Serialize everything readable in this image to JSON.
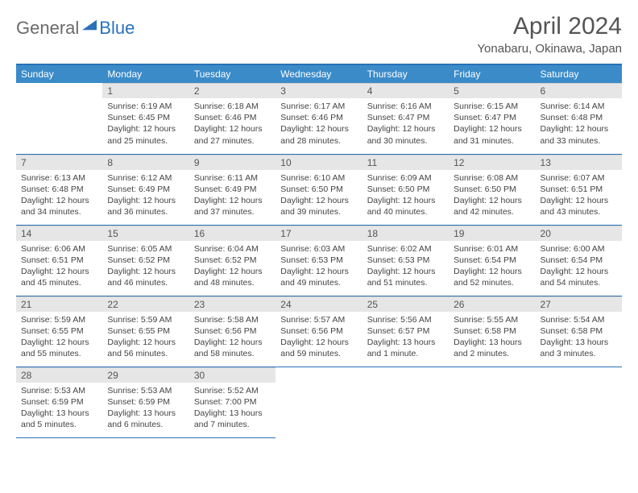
{
  "logo": {
    "general": "General",
    "blue": "Blue"
  },
  "title": "April 2024",
  "location": "Yonabaru, Okinawa, Japan",
  "colors": {
    "header_bg": "#3b8bc9",
    "border": "#2a71b8",
    "daynum_bg": "#e6e6e6",
    "text": "#444444",
    "title_text": "#555555",
    "logo_gray": "#6b6b6b",
    "logo_blue": "#2a71b8"
  },
  "fonts": {
    "title_size": 30,
    "location_size": 15,
    "header_size": 12,
    "cell_size": 10.5
  },
  "weekdays": [
    "Sunday",
    "Monday",
    "Tuesday",
    "Wednesday",
    "Thursday",
    "Friday",
    "Saturday"
  ],
  "weeks": [
    [
      null,
      {
        "n": "1",
        "sr": "6:19 AM",
        "ss": "6:45 PM",
        "dl": "12 hours and 25 minutes."
      },
      {
        "n": "2",
        "sr": "6:18 AM",
        "ss": "6:46 PM",
        "dl": "12 hours and 27 minutes."
      },
      {
        "n": "3",
        "sr": "6:17 AM",
        "ss": "6:46 PM",
        "dl": "12 hours and 28 minutes."
      },
      {
        "n": "4",
        "sr": "6:16 AM",
        "ss": "6:47 PM",
        "dl": "12 hours and 30 minutes."
      },
      {
        "n": "5",
        "sr": "6:15 AM",
        "ss": "6:47 PM",
        "dl": "12 hours and 31 minutes."
      },
      {
        "n": "6",
        "sr": "6:14 AM",
        "ss": "6:48 PM",
        "dl": "12 hours and 33 minutes."
      }
    ],
    [
      {
        "n": "7",
        "sr": "6:13 AM",
        "ss": "6:48 PM",
        "dl": "12 hours and 34 minutes."
      },
      {
        "n": "8",
        "sr": "6:12 AM",
        "ss": "6:49 PM",
        "dl": "12 hours and 36 minutes."
      },
      {
        "n": "9",
        "sr": "6:11 AM",
        "ss": "6:49 PM",
        "dl": "12 hours and 37 minutes."
      },
      {
        "n": "10",
        "sr": "6:10 AM",
        "ss": "6:50 PM",
        "dl": "12 hours and 39 minutes."
      },
      {
        "n": "11",
        "sr": "6:09 AM",
        "ss": "6:50 PM",
        "dl": "12 hours and 40 minutes."
      },
      {
        "n": "12",
        "sr": "6:08 AM",
        "ss": "6:50 PM",
        "dl": "12 hours and 42 minutes."
      },
      {
        "n": "13",
        "sr": "6:07 AM",
        "ss": "6:51 PM",
        "dl": "12 hours and 43 minutes."
      }
    ],
    [
      {
        "n": "14",
        "sr": "6:06 AM",
        "ss": "6:51 PM",
        "dl": "12 hours and 45 minutes."
      },
      {
        "n": "15",
        "sr": "6:05 AM",
        "ss": "6:52 PM",
        "dl": "12 hours and 46 minutes."
      },
      {
        "n": "16",
        "sr": "6:04 AM",
        "ss": "6:52 PM",
        "dl": "12 hours and 48 minutes."
      },
      {
        "n": "17",
        "sr": "6:03 AM",
        "ss": "6:53 PM",
        "dl": "12 hours and 49 minutes."
      },
      {
        "n": "18",
        "sr": "6:02 AM",
        "ss": "6:53 PM",
        "dl": "12 hours and 51 minutes."
      },
      {
        "n": "19",
        "sr": "6:01 AM",
        "ss": "6:54 PM",
        "dl": "12 hours and 52 minutes."
      },
      {
        "n": "20",
        "sr": "6:00 AM",
        "ss": "6:54 PM",
        "dl": "12 hours and 54 minutes."
      }
    ],
    [
      {
        "n": "21",
        "sr": "5:59 AM",
        "ss": "6:55 PM",
        "dl": "12 hours and 55 minutes."
      },
      {
        "n": "22",
        "sr": "5:59 AM",
        "ss": "6:55 PM",
        "dl": "12 hours and 56 minutes."
      },
      {
        "n": "23",
        "sr": "5:58 AM",
        "ss": "6:56 PM",
        "dl": "12 hours and 58 minutes."
      },
      {
        "n": "24",
        "sr": "5:57 AM",
        "ss": "6:56 PM",
        "dl": "12 hours and 59 minutes."
      },
      {
        "n": "25",
        "sr": "5:56 AM",
        "ss": "6:57 PM",
        "dl": "13 hours and 1 minute."
      },
      {
        "n": "26",
        "sr": "5:55 AM",
        "ss": "6:58 PM",
        "dl": "13 hours and 2 minutes."
      },
      {
        "n": "27",
        "sr": "5:54 AM",
        "ss": "6:58 PM",
        "dl": "13 hours and 3 minutes."
      }
    ],
    [
      {
        "n": "28",
        "sr": "5:53 AM",
        "ss": "6:59 PM",
        "dl": "13 hours and 5 minutes."
      },
      {
        "n": "29",
        "sr": "5:53 AM",
        "ss": "6:59 PM",
        "dl": "13 hours and 6 minutes."
      },
      {
        "n": "30",
        "sr": "5:52 AM",
        "ss": "7:00 PM",
        "dl": "13 hours and 7 minutes."
      },
      null,
      null,
      null,
      null
    ]
  ],
  "labels": {
    "sunrise": "Sunrise:",
    "sunset": "Sunset:",
    "daylight": "Daylight:"
  }
}
